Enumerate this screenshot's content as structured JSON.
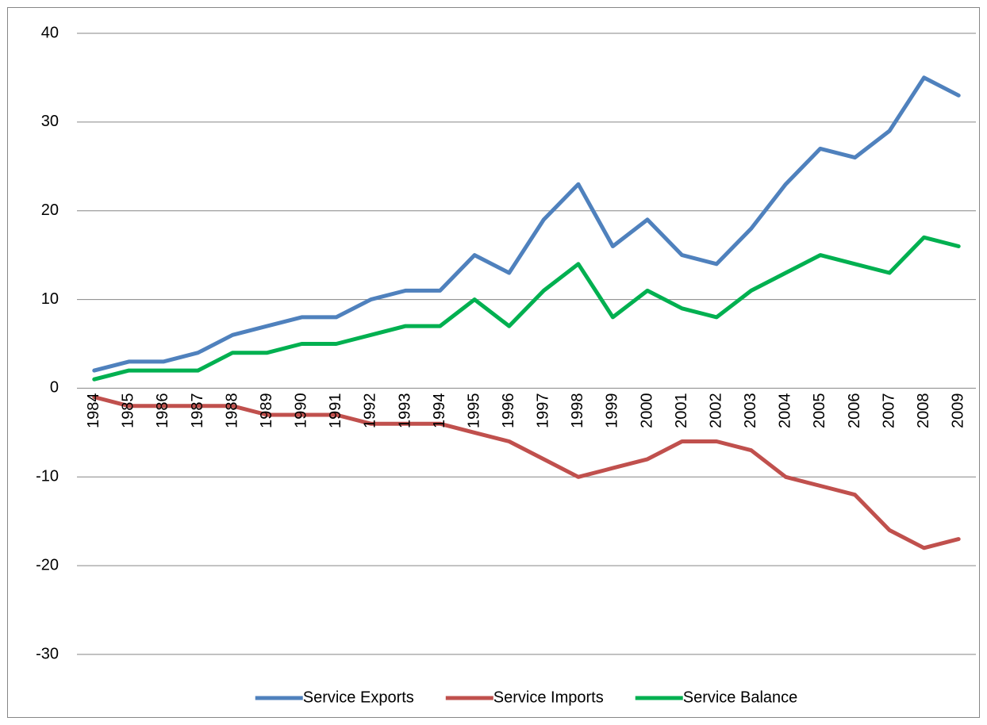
{
  "chart_data": {
    "type": "line",
    "categories": [
      "1984",
      "1985",
      "1986",
      "1987",
      "1988",
      "1989",
      "1990",
      "1991",
      "1992",
      "1993",
      "1994",
      "1995",
      "1996",
      "1997",
      "1998",
      "1999",
      "2000",
      "2001",
      "2002",
      "2003",
      "2004",
      "2005",
      "2006",
      "2007",
      "2008",
      "2009"
    ],
    "series": [
      {
        "name": "Service Exports",
        "color": "#4f81bd",
        "values": [
          2,
          3,
          3,
          4,
          6,
          7,
          8,
          8,
          10,
          11,
          11,
          15,
          13,
          19,
          23,
          16,
          19,
          15,
          14,
          18,
          23,
          27,
          26,
          29,
          35,
          33
        ]
      },
      {
        "name": "Service Imports",
        "color": "#c0504d",
        "values": [
          -1,
          -2,
          -2,
          -2,
          -2,
          -3,
          -3,
          -3,
          -4,
          -4,
          -4,
          -5,
          -6,
          -8,
          -10,
          -9,
          -8,
          -6,
          -6,
          -7,
          -10,
          -11,
          -12,
          -16,
          -18,
          -17
        ]
      },
      {
        "name": "Service Balance",
        "color": "#00b050",
        "values": [
          1,
          2,
          2,
          2,
          4,
          4,
          5,
          5,
          6,
          7,
          7,
          10,
          7,
          11,
          14,
          8,
          11,
          9,
          8,
          11,
          13,
          15,
          14,
          13,
          17,
          16
        ]
      }
    ],
    "ylim": [
      -30,
      40
    ],
    "yticks": [
      -30,
      -20,
      -10,
      0,
      10,
      20,
      30,
      40
    ],
    "grid": true,
    "legend": "bottom"
  }
}
